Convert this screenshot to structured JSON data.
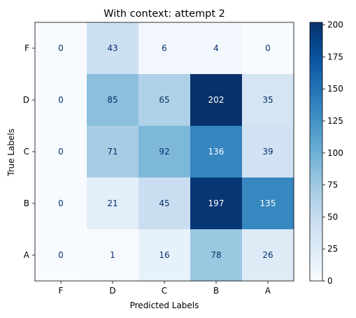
{
  "chart_data": {
    "type": "heatmap",
    "title": "With context: attempt 2",
    "xlabel": "Predicted Labels",
    "ylabel": "True Labels",
    "x_categories": [
      "F",
      "D",
      "C",
      "B",
      "A"
    ],
    "y_categories": [
      "F",
      "D",
      "C",
      "B",
      "A"
    ],
    "values": [
      [
        0,
        43,
        6,
        4,
        0
      ],
      [
        0,
        85,
        65,
        202,
        35
      ],
      [
        0,
        71,
        92,
        136,
        39
      ],
      [
        0,
        21,
        45,
        197,
        135
      ],
      [
        0,
        1,
        16,
        78,
        26
      ]
    ],
    "colormap": "Blues",
    "colorbar": {
      "min": 0,
      "max": 202,
      "ticks": [
        0,
        25,
        50,
        75,
        100,
        125,
        150,
        175,
        200
      ]
    },
    "text_color_light": "#ffffff",
    "text_color_dark": "#08306b"
  }
}
